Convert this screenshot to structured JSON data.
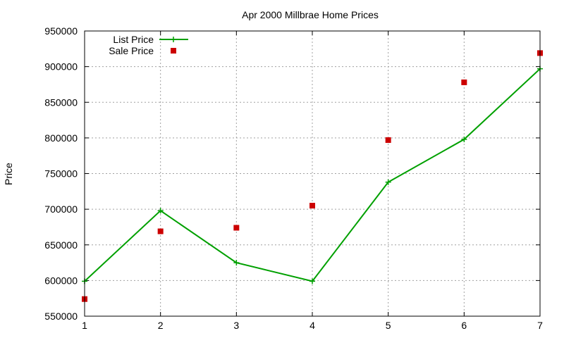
{
  "chart_data": {
    "type": "line",
    "title": "Apr 2000 Millbrae Home Prices",
    "ylabel": "Price",
    "xlim": [
      1,
      7
    ],
    "ylim": [
      550000,
      950000
    ],
    "x_ticks": [
      "1",
      "2",
      "3",
      "4",
      "5",
      "6",
      "7"
    ],
    "y_ticks": [
      "550000",
      "600000",
      "650000",
      "700000",
      "750000",
      "800000",
      "850000",
      "900000",
      "950000"
    ],
    "grid": true,
    "legend_position": "top-left",
    "series": [
      {
        "name": "List Price",
        "style": "line-points",
        "color": "#00a000",
        "x": [
          1,
          2,
          3,
          4,
          5,
          6,
          7
        ],
        "values": [
          599000,
          698000,
          625000,
          599000,
          738000,
          798000,
          897000
        ]
      },
      {
        "name": "Sale Price",
        "style": "points",
        "color": "#cc0000",
        "x": [
          1,
          2,
          3,
          4,
          5,
          6,
          7
        ],
        "values": [
          574000,
          669000,
          674000,
          705000,
          797000,
          878000,
          919000
        ]
      }
    ]
  }
}
